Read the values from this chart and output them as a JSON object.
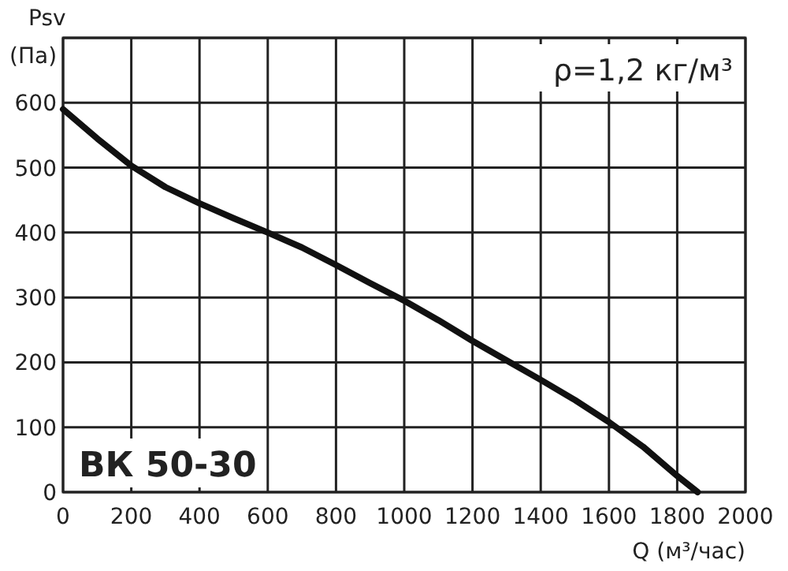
{
  "chart_data": {
    "type": "line",
    "xlabel": "Q (м³/час)",
    "ylabel": "Psv (Па)",
    "xlim": [
      0,
      2000
    ],
    "ylim": [
      0,
      700
    ],
    "xticks": [
      0,
      200,
      400,
      600,
      800,
      1000,
      1200,
      1400,
      1600,
      1800,
      2000
    ],
    "yticks": [
      0,
      100,
      200,
      300,
      400,
      500,
      600,
      {
        "value": 700,
        "label": null
      }
    ],
    "grid": true,
    "marker": "none",
    "line_style": "solid",
    "annotations": [
      "ρ=1,2 кг/м³",
      "ВК 50-30"
    ],
    "series": [
      {
        "color": "#111111",
        "x": [
          0,
          100,
          200,
          300,
          400,
          500,
          600,
          700,
          800,
          900,
          1000,
          1100,
          1200,
          1300,
          1400,
          1500,
          1600,
          1700,
          1800,
          1860
        ],
        "values": [
          590,
          545,
          503,
          470,
          445,
          422,
          400,
          377,
          350,
          322,
          295,
          265,
          233,
          203,
          173,
          142,
          108,
          70,
          25,
          0
        ]
      }
    ]
  }
}
